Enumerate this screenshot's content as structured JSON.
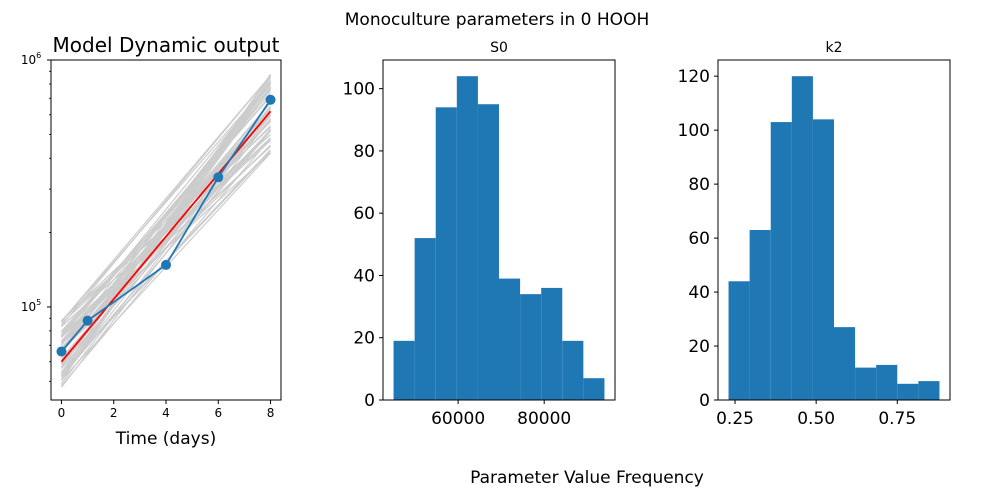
{
  "figure": {
    "suptitle": "Monoculture parameters in 0 HOOH",
    "supxlabel": "Parameter Value Frequency"
  },
  "colors": {
    "gray": "#cccccc",
    "red": "#ff0000",
    "blue": "#1f77b4"
  },
  "chart_data": [
    {
      "type": "line",
      "title": "Model Dynamic output",
      "xlabel": "Time (days)",
      "ylabel": "",
      "xlim": [
        -0.4,
        8.4
      ],
      "ylim": [
        42000,
        1000000
      ],
      "yscale": "log",
      "x_ticks": [
        0,
        2,
        4,
        6,
        8
      ],
      "y_ticks": [
        {
          "value": 100000,
          "label": "10^5"
        },
        {
          "value": 1000000,
          "label": "10^6"
        }
      ],
      "series": [
        {
          "name": "",
          "style": "gray ensemble lines",
          "count": 60,
          "x": [
            0,
            8
          ],
          "y_start_range": [
            47000,
            90000
          ],
          "y_end_range": [
            410000,
            880000
          ]
        },
        {
          "name": "",
          "style": "red line",
          "x": [
            0,
            8
          ],
          "y": [
            60000,
            620000
          ]
        },
        {
          "name": "",
          "style": "blue line with markers",
          "x": [
            0,
            1,
            4,
            6,
            8
          ],
          "y": [
            66000,
            88000,
            148000,
            335000,
            690000
          ]
        }
      ]
    },
    {
      "type": "bar",
      "title": "S0",
      "xlabel": "",
      "ylabel": "",
      "bin_edges": [
        45000,
        49900,
        54800,
        59700,
        64600,
        69500,
        74400,
        79300,
        84200,
        89100,
        94000
      ],
      "values": [
        19,
        52,
        94,
        104,
        95,
        39,
        34,
        36,
        19,
        7
      ],
      "xlim": [
        42550,
        96450
      ],
      "ylim": [
        0,
        109.2
      ],
      "x_ticks": [
        {
          "value": 60000,
          "label": "60000"
        },
        {
          "value": 80000,
          "label": "80000"
        }
      ],
      "y_ticks": [
        0,
        20,
        40,
        60,
        80,
        100
      ]
    },
    {
      "type": "bar",
      "title": "k2",
      "xlabel": "",
      "ylabel": "",
      "bin_edges": [
        0.23,
        0.295,
        0.36,
        0.425,
        0.49,
        0.555,
        0.62,
        0.685,
        0.75,
        0.815,
        0.88
      ],
      "values": [
        44,
        63,
        103,
        120,
        104,
        27,
        12,
        13,
        6,
        7
      ],
      "xlim": [
        0.1975,
        0.9125
      ],
      "ylim": [
        0,
        126
      ],
      "x_ticks": [
        {
          "value": 0.25,
          "label": "0.25"
        },
        {
          "value": 0.5,
          "label": "0.50"
        },
        {
          "value": 0.75,
          "label": "0.75"
        }
      ],
      "y_ticks": [
        0,
        20,
        40,
        60,
        80,
        100,
        120
      ]
    }
  ]
}
